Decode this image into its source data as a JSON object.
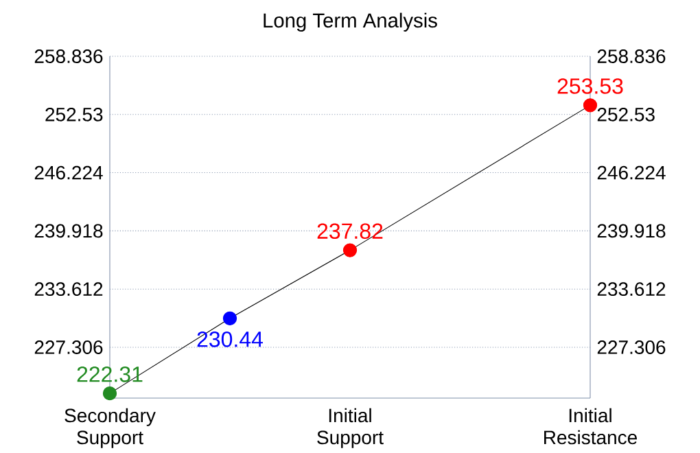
{
  "chart_data": {
    "type": "line",
    "title": "Long Term Analysis",
    "categories": [
      "Secondary Support",
      null,
      "Initial Support",
      null,
      "Initial Resistance"
    ],
    "ylim": [
      221.8,
      258.836
    ],
    "yticks": [
      227.306,
      233.612,
      239.918,
      246.224,
      252.53,
      258.836
    ],
    "y2lim": [
      221.8,
      258.836
    ],
    "y2ticks": [
      227.306,
      233.612,
      239.918,
      246.224,
      252.53,
      258.836
    ],
    "series": [
      {
        "color": "#000000",
        "colors": [
          "#228b22",
          "#0000ff",
          "#ff0000",
          null,
          "#ff0000"
        ],
        "values": [
          222.31,
          230.44,
          237.82,
          null,
          253.53
        ]
      }
    ],
    "marker": "circle",
    "data_labels": true,
    "grid": "y"
  }
}
